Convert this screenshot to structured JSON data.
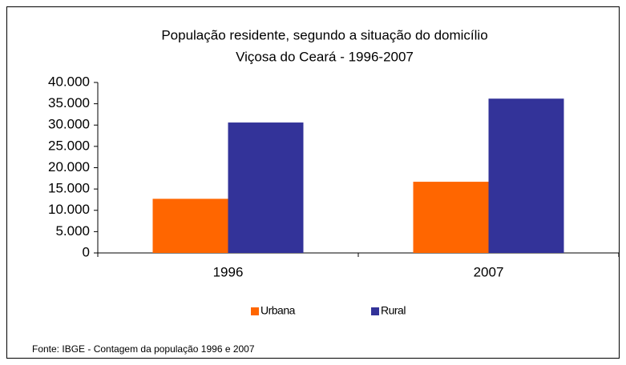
{
  "chart_data": {
    "type": "bar",
    "title": "População residente, segundo a situação do domicílio",
    "subtitle": "Viçosa do Ceará - 1996-2007",
    "categories": [
      "1996",
      "2007"
    ],
    "series": [
      {
        "name": "Urbana",
        "color": "#ff6600",
        "values": [
          12700,
          16700
        ]
      },
      {
        "name": "Rural",
        "color": "#333399",
        "values": [
          30600,
          36200
        ]
      }
    ],
    "ylim": [
      0,
      40000
    ],
    "yticks": [
      0,
      {
        "value": 5000,
        "label": "5.000"
      },
      {
        "value": 10000,
        "label": "10.000"
      },
      {
        "value": 15000,
        "label": "15.000"
      },
      {
        "value": 20000,
        "label": "20.000"
      },
      {
        "value": 25000,
        "label": "25.000"
      },
      {
        "value": 30000,
        "label": "30.000"
      },
      {
        "value": 35000,
        "label": "35.000"
      },
      {
        "value": 40000,
        "label": "40.000"
      }
    ],
    "legend": "bottom",
    "source": "Fonte: IBGE - Contagem da população 1996 e 2007"
  }
}
